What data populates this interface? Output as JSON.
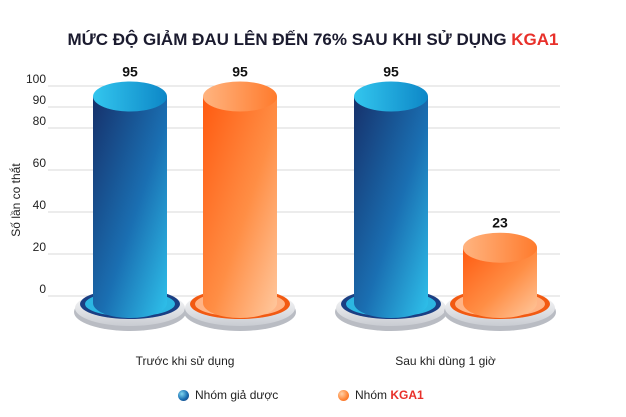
{
  "title_main": "MỨC ĐỘ GIẢM ĐAU LÊN ĐẾN 76% SAU KHI SỬ DỤNG ",
  "title_accent": "KGA1",
  "chart_data": {
    "type": "bar",
    "title": "MỨC ĐỘ GIẢM ĐAU LÊN ĐẾN 76% SAU KHI SỬ DỤNG KGA1",
    "ylabel": "Số lần co thắt",
    "xlabel": "",
    "ylim": [
      0,
      100
    ],
    "yticks": [
      0,
      20,
      40,
      60,
      80,
      90,
      100
    ],
    "categories": [
      "Trước khi sử dụng",
      "Sau khi dùng 1 giờ"
    ],
    "series": [
      {
        "name": "Nhóm giả dược",
        "values": [
          95,
          95
        ],
        "labels": [
          "95",
          "95"
        ],
        "color": "#1a4f9a"
      },
      {
        "name": "Nhóm KGA1",
        "values": [
          95,
          23
        ],
        "labels": [
          "95",
          "23"
        ],
        "color": "#ff7a2a"
      }
    ],
    "grid": true,
    "legend": "bottom-center"
  },
  "legend": {
    "item1": "Nhóm giả dược",
    "item2_prefix": "Nhóm ",
    "item2_brand": "KGA1"
  },
  "colors": {
    "accent": "#e8302a",
    "blue": "#1a4f9a",
    "orange": "#ff7a2a"
  }
}
